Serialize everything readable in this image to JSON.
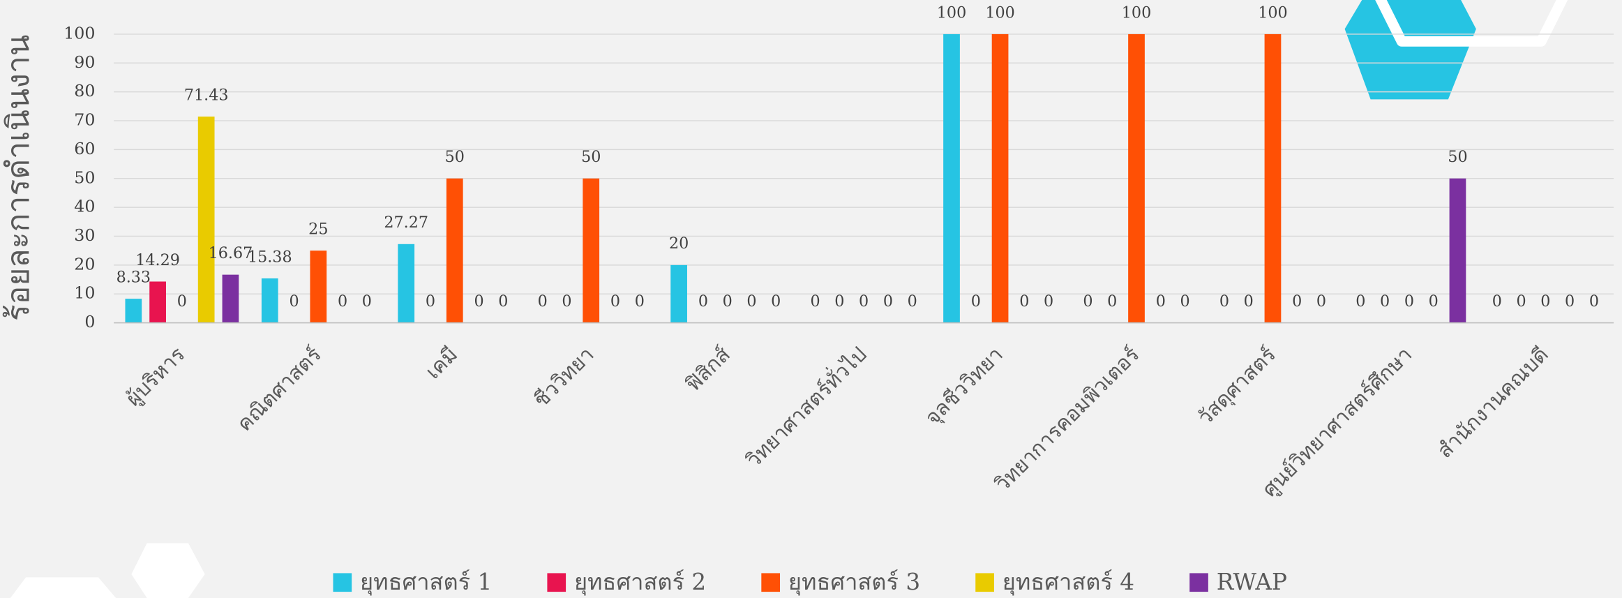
{
  "chart_data": {
    "type": "bar",
    "y_label": "ร้อยละการดำเนินงาน",
    "categories": [
      "ผู้บริหาร",
      "คณิตศาสตร์",
      "เคมี",
      "ชีววิทยา",
      "ฟิสิกส์",
      "วิทยาศาสตร์ทั่วไป",
      "จุลชีววิทยา",
      "วิทยาการคอมพิวเตอร์",
      "วัสดุศาสตร์",
      "ศูนย์วิทยาศาสตร์ศึกษา",
      "สำนักงานคณบดี"
    ],
    "series": [
      {
        "name": "ยุทธศาสตร์ 1",
        "color": "#26c4e3",
        "values": [
          8.33,
          15.38,
          27.27,
          0,
          20,
          0,
          100,
          0,
          0,
          0,
          0
        ]
      },
      {
        "name": "ยุทธศาสตร์ 2",
        "color": "#e8144f",
        "values": [
          14.29,
          0,
          0,
          0,
          0,
          0,
          0,
          0,
          0,
          0,
          0
        ]
      },
      {
        "name": "ยุทธศาสตร์ 3",
        "color": "#ff5005",
        "values": [
          0,
          25,
          50,
          50,
          0,
          0,
          100,
          100,
          100,
          0,
          0
        ]
      },
      {
        "name": "ยุทธศาสตร์ 4",
        "color": "#e9cb00",
        "values": [
          71.43,
          0,
          0,
          0,
          0,
          0,
          0,
          0,
          0,
          0,
          0
        ]
      },
      {
        "name": "RWAP",
        "color": "#7b30a0",
        "values": [
          16.67,
          0,
          0,
          0,
          0,
          0,
          0,
          0,
          0,
          50,
          0
        ]
      }
    ],
    "ylim": [
      0,
      100
    ],
    "yticks": [
      0,
      10,
      20,
      30,
      40,
      50,
      60,
      70,
      80,
      90,
      100
    ],
    "grid": true
  }
}
